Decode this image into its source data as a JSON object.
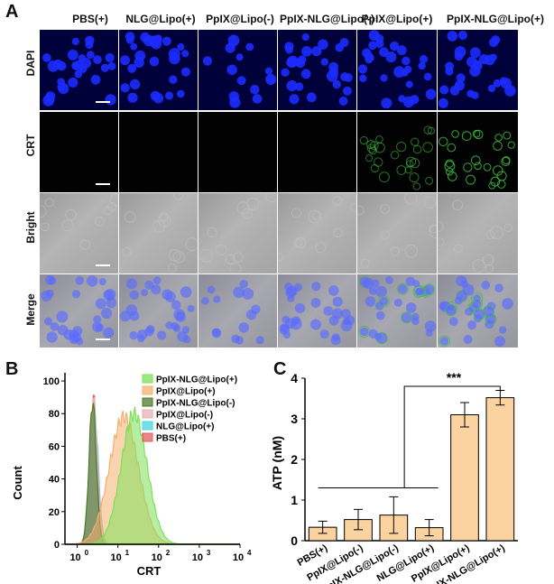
{
  "panel_labels": {
    "a": "A",
    "b": "B",
    "c": "C"
  },
  "panel_a": {
    "columns": [
      "PBS(+)",
      "NLG@Lipo(+)",
      "PpIX@Lipo(-)",
      "PpIX-NLG@Lipo(-)",
      "PpIX@Lipo(+)",
      "PpIX-NLG@Lipo(+)"
    ],
    "rows": [
      "DAPI",
      "CRT",
      "Bright",
      "Merge"
    ],
    "colors": {
      "dapi_cell": "#1c2bff",
      "crt_signal": "#3fbf3f",
      "merge_cell": "#5a6cff"
    }
  },
  "chart_data": [
    {
      "type": "area",
      "panel": "B",
      "title": "",
      "xlabel": "CRT",
      "ylabel": "Count",
      "xscale": "log",
      "xlim": [
        0.5,
        10000
      ],
      "ylim": [
        0,
        105
      ],
      "xticks": [
        "10",
        "10",
        "10",
        "10",
        "10"
      ],
      "xtick_exponents": [
        "0",
        "1",
        "2",
        "3",
        "4"
      ],
      "yticks": [
        "0",
        "20",
        "40",
        "60",
        "80",
        "100"
      ],
      "legend_position": "top-right",
      "series": [
        {
          "name": "PpIX-NLG@Lipo(+)",
          "color": "#7ee05a",
          "peak_x": 25,
          "peak_y": 80,
          "width": 0.32
        },
        {
          "name": "PpIX@Lipo(+)",
          "color": "#f5b070",
          "peak_x": 14,
          "peak_y": 78,
          "width": 0.36
        },
        {
          "name": "PpIX-NLG@Lipo(-)",
          "color": "#4f7a2a",
          "peak_x": 2.4,
          "peak_y": 87,
          "width": 0.09
        },
        {
          "name": "PpIX@Lipo(-)",
          "color": "#e8b0b0",
          "peak_x": 2.5,
          "peak_y": 88,
          "width": 0.1
        },
        {
          "name": "NLG@Lipo(+)",
          "color": "#49d4e0",
          "peak_x": 2.6,
          "peak_y": 84,
          "width": 0.1
        },
        {
          "name": "PBS(+)",
          "color": "#e06060",
          "peak_x": 2.5,
          "peak_y": 90,
          "width": 0.09
        }
      ]
    },
    {
      "type": "bar",
      "panel": "C",
      "title": "",
      "xlabel": "",
      "ylabel": "ATP (nM)",
      "ylim": [
        0,
        4
      ],
      "yticks": [
        "0",
        "1",
        "2",
        "3",
        "4"
      ],
      "categories": [
        "PBS(+)",
        "PpIX@Lipo(-)",
        "PpIX-NLG@Lipo(-)",
        "NLG@Lipo(+)",
        "PpIX@Lipo(+)",
        "PpIX-NLG@Lipo(+)"
      ],
      "values": [
        0.33,
        0.52,
        0.63,
        0.32,
        3.1,
        3.52
      ],
      "errors": [
        0.15,
        0.25,
        0.45,
        0.2,
        0.3,
        0.18
      ],
      "bar_color": "#fbd3a0",
      "significance": "***"
    }
  ]
}
